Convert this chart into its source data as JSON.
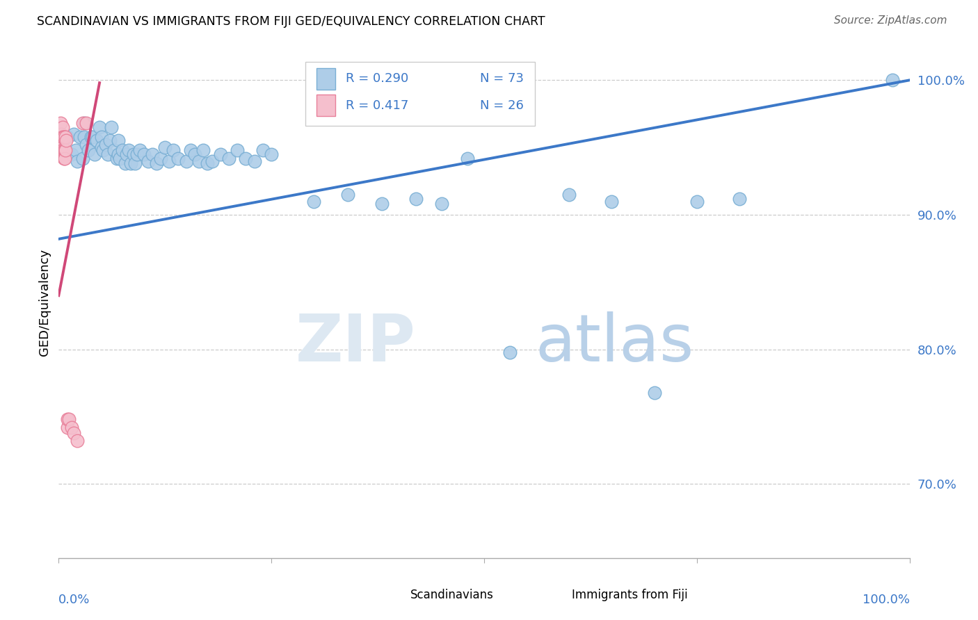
{
  "title": "SCANDINAVIAN VS IMMIGRANTS FROM FIJI GED/EQUIVALENCY CORRELATION CHART",
  "source": "Source: ZipAtlas.com",
  "ylabel": "GED/Equivalency",
  "y_tick_values": [
    0.7,
    0.8,
    0.9,
    1.0
  ],
  "legend_blue_r": "R = 0.290",
  "legend_blue_n": "N = 73",
  "legend_pink_r": "R = 0.417",
  "legend_pink_n": "N = 26",
  "blue_color": "#aecde8",
  "blue_edge_color": "#7aafd4",
  "pink_color": "#f5bfcd",
  "pink_edge_color": "#e8809a",
  "blue_line_color": "#3c78c8",
  "pink_line_color": "#d04878",
  "watermark_zip": "ZIP",
  "watermark_atlas": "atlas",
  "blue_scatter_x": [
    0.01,
    0.015,
    0.018,
    0.02,
    0.022,
    0.025,
    0.028,
    0.03,
    0.03,
    0.032,
    0.035,
    0.038,
    0.04,
    0.042,
    0.045,
    0.048,
    0.05,
    0.05,
    0.052,
    0.055,
    0.058,
    0.06,
    0.062,
    0.065,
    0.068,
    0.07,
    0.07,
    0.072,
    0.075,
    0.078,
    0.08,
    0.082,
    0.085,
    0.088,
    0.09,
    0.092,
    0.095,
    0.1,
    0.105,
    0.11,
    0.115,
    0.12,
    0.125,
    0.13,
    0.135,
    0.14,
    0.15,
    0.155,
    0.16,
    0.165,
    0.17,
    0.175,
    0.18,
    0.19,
    0.2,
    0.21,
    0.22,
    0.23,
    0.24,
    0.25,
    0.3,
    0.34,
    0.38,
    0.42,
    0.45,
    0.48,
    0.53,
    0.6,
    0.65,
    0.7,
    0.75,
    0.8,
    0.98
  ],
  "blue_scatter_y": [
    0.958,
    0.945,
    0.96,
    0.948,
    0.94,
    0.958,
    0.942,
    0.958,
    0.968,
    0.952,
    0.948,
    0.958,
    0.958,
    0.945,
    0.955,
    0.965,
    0.958,
    0.95,
    0.948,
    0.952,
    0.945,
    0.955,
    0.965,
    0.948,
    0.942,
    0.955,
    0.945,
    0.942,
    0.948,
    0.938,
    0.945,
    0.948,
    0.938,
    0.945,
    0.938,
    0.945,
    0.948,
    0.945,
    0.94,
    0.945,
    0.938,
    0.942,
    0.95,
    0.94,
    0.948,
    0.942,
    0.94,
    0.948,
    0.945,
    0.94,
    0.948,
    0.938,
    0.94,
    0.945,
    0.942,
    0.948,
    0.942,
    0.94,
    0.948,
    0.945,
    0.91,
    0.915,
    0.908,
    0.912,
    0.908,
    0.942,
    0.798,
    0.915,
    0.91,
    0.768,
    0.91,
    0.912,
    1.0
  ],
  "pink_scatter_x": [
    0.002,
    0.002,
    0.003,
    0.003,
    0.004,
    0.004,
    0.005,
    0.005,
    0.005,
    0.006,
    0.006,
    0.006,
    0.006,
    0.007,
    0.007,
    0.008,
    0.008,
    0.009,
    0.01,
    0.01,
    0.012,
    0.015,
    0.018,
    0.022,
    0.028,
    0.032
  ],
  "pink_scatter_y": [
    0.968,
    0.955,
    0.96,
    0.95,
    0.958,
    0.948,
    0.965,
    0.958,
    0.948,
    0.958,
    0.948,
    0.942,
    0.958,
    0.948,
    0.942,
    0.948,
    0.958,
    0.955,
    0.742,
    0.748,
    0.748,
    0.742,
    0.738,
    0.732,
    0.968,
    0.968
  ],
  "blue_trend_x": [
    0.0,
    1.0
  ],
  "blue_trend_y": [
    0.882,
    1.0
  ],
  "pink_trend_x": [
    0.0,
    0.048
  ],
  "pink_trend_y": [
    0.84,
    0.998
  ],
  "xlim": [
    0.0,
    1.0
  ],
  "ylim": [
    0.645,
    1.025
  ]
}
